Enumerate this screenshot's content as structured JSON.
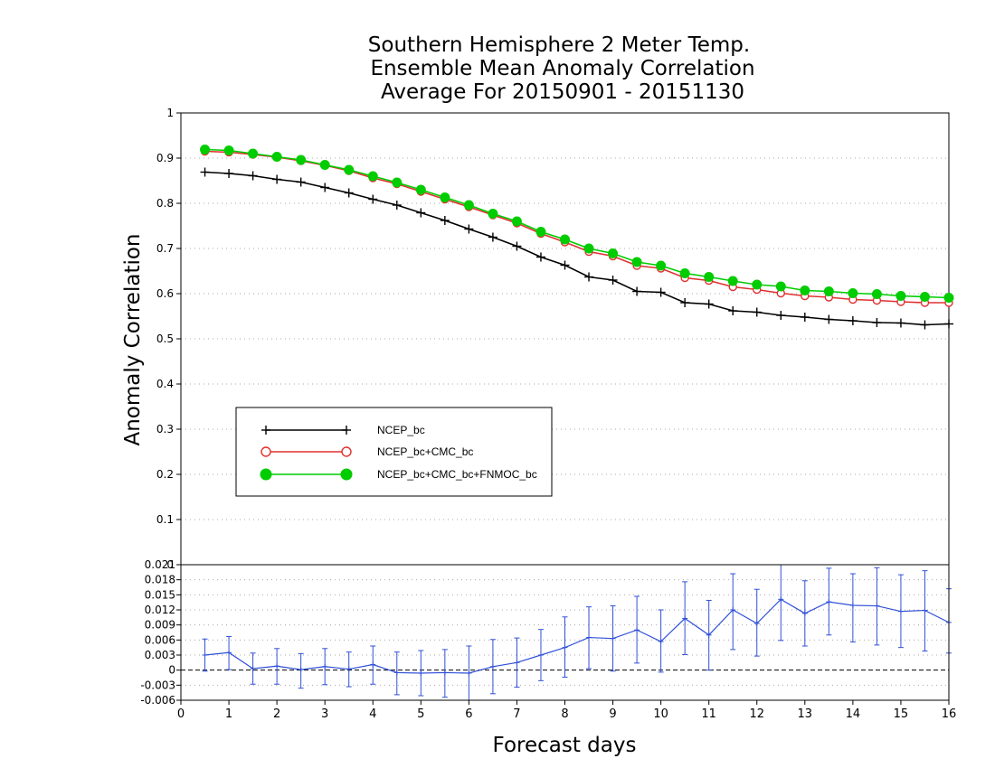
{
  "chart_data": [
    {
      "type": "line",
      "title_lines": [
        "Southern Hemisphere 2 Meter Temp.",
        "Ensemble Mean Anomaly Correlation",
        "Average For 20150901 - 20151130"
      ],
      "xlabel": "Forecast days",
      "ylabel": "Anomaly Correlation",
      "xlim": [
        0,
        16
      ],
      "ylim": [
        0,
        1
      ],
      "x_ticks": [
        "0",
        "1",
        "2",
        "3",
        "4",
        "5",
        "6",
        "7",
        "8",
        "9",
        "10",
        "11",
        "12",
        "13",
        "14",
        "15",
        "16"
      ],
      "y_ticks": [
        "0.1",
        "0.2",
        "0.3",
        "0.4",
        "0.5",
        "0.6",
        "0.7",
        "0.8",
        "0.9",
        "1"
      ],
      "grid": "dotted horizontal",
      "legend": "lower-left box",
      "x": [
        0.5,
        1,
        1.5,
        2,
        2.5,
        3,
        3.5,
        4,
        4.5,
        5,
        5.5,
        6,
        6.5,
        7,
        7.5,
        8,
        8.5,
        9,
        9.5,
        10,
        10.5,
        11,
        11.5,
        12,
        12.5,
        13,
        13.5,
        14,
        14.5,
        15,
        15.5,
        16
      ],
      "series": [
        {
          "name": "NCEP_bc",
          "color": "#000000",
          "marker": "plus",
          "values": [
            0.869,
            0.866,
            0.861,
            0.853,
            0.847,
            0.835,
            0.823,
            0.809,
            0.796,
            0.779,
            0.762,
            0.743,
            0.725,
            0.705,
            0.681,
            0.663,
            0.637,
            0.63,
            0.605,
            0.603,
            0.58,
            0.577,
            0.562,
            0.559,
            0.552,
            0.548,
            0.543,
            0.54,
            0.536,
            0.535,
            0.531,
            0.533
          ]
        },
        {
          "name": "NCEP_bc+CMC_bc",
          "color": "#e03030",
          "marker": "open-circle",
          "values": [
            0.915,
            0.913,
            0.908,
            0.902,
            0.894,
            0.884,
            0.872,
            0.856,
            0.843,
            0.826,
            0.809,
            0.792,
            0.774,
            0.756,
            0.733,
            0.714,
            0.693,
            0.683,
            0.662,
            0.656,
            0.635,
            0.629,
            0.615,
            0.609,
            0.601,
            0.595,
            0.592,
            0.587,
            0.585,
            0.582,
            0.58,
            0.58
          ]
        },
        {
          "name": "NCEP_bc+CMC_bc+FNMOC_bc",
          "color": "#00cc00",
          "marker": "filled-circle",
          "values": [
            0.919,
            0.917,
            0.91,
            0.903,
            0.896,
            0.885,
            0.874,
            0.86,
            0.846,
            0.83,
            0.813,
            0.796,
            0.777,
            0.76,
            0.737,
            0.72,
            0.7,
            0.689,
            0.67,
            0.662,
            0.645,
            0.637,
            0.628,
            0.62,
            0.616,
            0.607,
            0.605,
            0.601,
            0.599,
            0.595,
            0.593,
            0.591
          ]
        }
      ]
    },
    {
      "type": "line",
      "xlabel": "Forecast days",
      "ylim": [
        -0.006,
        0.021
      ],
      "y_ticks": [
        "-0.006",
        "-0.003",
        "0",
        "0.003",
        "0.006",
        "0.009",
        "0.012",
        "0.015",
        "0.018",
        "0.021"
      ],
      "series": [
        {
          "color": "#3050d8",
          "marker": "plus with error bars",
          "values": [
            0.003,
            0.0035,
            0.0003,
            0.0008,
            0.0001,
            0.0007,
            0.0002,
            0.0011,
            -0.0005,
            -0.0006,
            -0.0005,
            -0.0006,
            0.0007,
            0.0015,
            0.003,
            0.0045,
            0.0065,
            0.0063,
            0.008,
            0.0057,
            0.0103,
            0.007,
            0.012,
            0.0093,
            0.0141,
            0.0113,
            0.0136,
            0.0129,
            0.0128,
            0.0117,
            0.0119,
            0.0095
          ],
          "error_low": [
            -0.0002,
            0.0001,
            -0.0028,
            -0.0028,
            -0.0036,
            -0.0029,
            -0.0033,
            -0.0028,
            -0.0049,
            -0.0051,
            -0.0054,
            -0.006,
            -0.0047,
            -0.0034,
            -0.0021,
            -0.0014,
            0.0003,
            -0.0002,
            0.0014,
            -0.0004,
            0.0031,
            0.0,
            0.0041,
            0.0028,
            0.0059,
            0.0048,
            0.007,
            0.0056,
            0.005,
            0.0045,
            0.0038,
            0.0034
          ],
          "error_high": [
            0.0062,
            0.0067,
            0.0034,
            0.0043,
            0.0033,
            0.0043,
            0.0036,
            0.0048,
            0.0036,
            0.0039,
            0.0041,
            0.0048,
            0.0061,
            0.0064,
            0.0081,
            0.0106,
            0.0126,
            0.0128,
            0.0147,
            0.012,
            0.0176,
            0.0139,
            0.0192,
            0.0161,
            0.0213,
            0.0178,
            0.0203,
            0.0192,
            0.0204,
            0.019,
            0.0198,
            0.0162
          ]
        }
      ]
    }
  ]
}
